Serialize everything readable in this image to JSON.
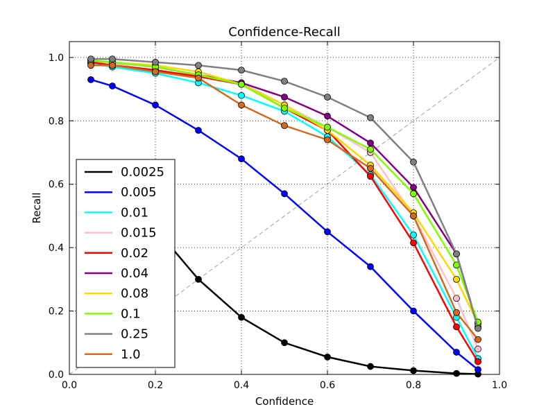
{
  "chart_data": {
    "type": "line",
    "title": "Confidence-Recall",
    "xlabel": "Confidence",
    "ylabel": "Recall",
    "xlim": [
      0.0,
      1.0
    ],
    "ylim": [
      0.0,
      1.05
    ],
    "xticks": [
      "0.0",
      "0.2",
      "0.4",
      "0.6",
      "0.8",
      "1.0"
    ],
    "yticks": [
      "0.0",
      "0.2",
      "0.4",
      "0.6",
      "0.8",
      "1.0"
    ],
    "grid": true,
    "legend_position": "bottom-left",
    "x": [
      0.05,
      0.1,
      0.2,
      0.3,
      0.4,
      0.5,
      0.6,
      0.7,
      0.8,
      0.9,
      0.95
    ],
    "reference_line": {
      "style": "dashed",
      "color": "#a0a0a0",
      "from": [
        0,
        0
      ],
      "to": [
        1,
        1
      ]
    },
    "series": [
      {
        "name": "0.0025",
        "color": "#000000",
        "values": [
          0.54,
          0.52,
          0.46,
          0.3,
          0.18,
          0.1,
          0.055,
          0.025,
          0.012,
          0.003,
          0.001
        ]
      },
      {
        "name": "0.005",
        "color": "#0000ff",
        "values": [
          0.93,
          0.91,
          0.85,
          0.77,
          0.68,
          0.57,
          0.45,
          0.34,
          0.2,
          0.07,
          0.015
        ]
      },
      {
        "name": "0.01",
        "color": "#00ffff",
        "values": [
          0.98,
          0.97,
          0.95,
          0.92,
          0.88,
          0.83,
          0.75,
          0.63,
          0.44,
          0.18,
          0.05
        ]
      },
      {
        "name": "0.015",
        "color": "#ffc0cb",
        "values": [
          0.985,
          0.98,
          0.96,
          0.94,
          0.92,
          0.85,
          0.78,
          0.7,
          0.5,
          0.24,
          0.08
        ]
      },
      {
        "name": "0.02",
        "color": "#ff0000",
        "values": [
          0.985,
          0.975,
          0.96,
          0.94,
          0.915,
          0.84,
          0.77,
          0.625,
          0.415,
          0.15,
          0.04
        ]
      },
      {
        "name": "0.04",
        "color": "#800080",
        "values": [
          0.99,
          0.985,
          0.97,
          0.945,
          0.92,
          0.875,
          0.815,
          0.73,
          0.59,
          0.38,
          0.15
        ]
      },
      {
        "name": "0.08",
        "color": "#ffd700",
        "values": [
          0.99,
          0.985,
          0.975,
          0.955,
          0.915,
          0.85,
          0.77,
          0.66,
          0.51,
          0.3,
          0.16
        ]
      },
      {
        "name": "0.1",
        "color": "#7fff00",
        "values": [
          0.99,
          0.985,
          0.97,
          0.945,
          0.915,
          0.84,
          0.78,
          0.71,
          0.57,
          0.345,
          0.165
        ]
      },
      {
        "name": "0.25",
        "color": "#808080",
        "values": [
          0.995,
          0.995,
          0.985,
          0.975,
          0.96,
          0.925,
          0.875,
          0.81,
          0.67,
          0.38,
          0.145
        ]
      },
      {
        "name": "1.0",
        "color": "#d2691e",
        "values": [
          0.975,
          0.975,
          0.955,
          0.935,
          0.85,
          0.785,
          0.74,
          0.65,
          0.5,
          0.195,
          0.11
        ]
      }
    ]
  }
}
